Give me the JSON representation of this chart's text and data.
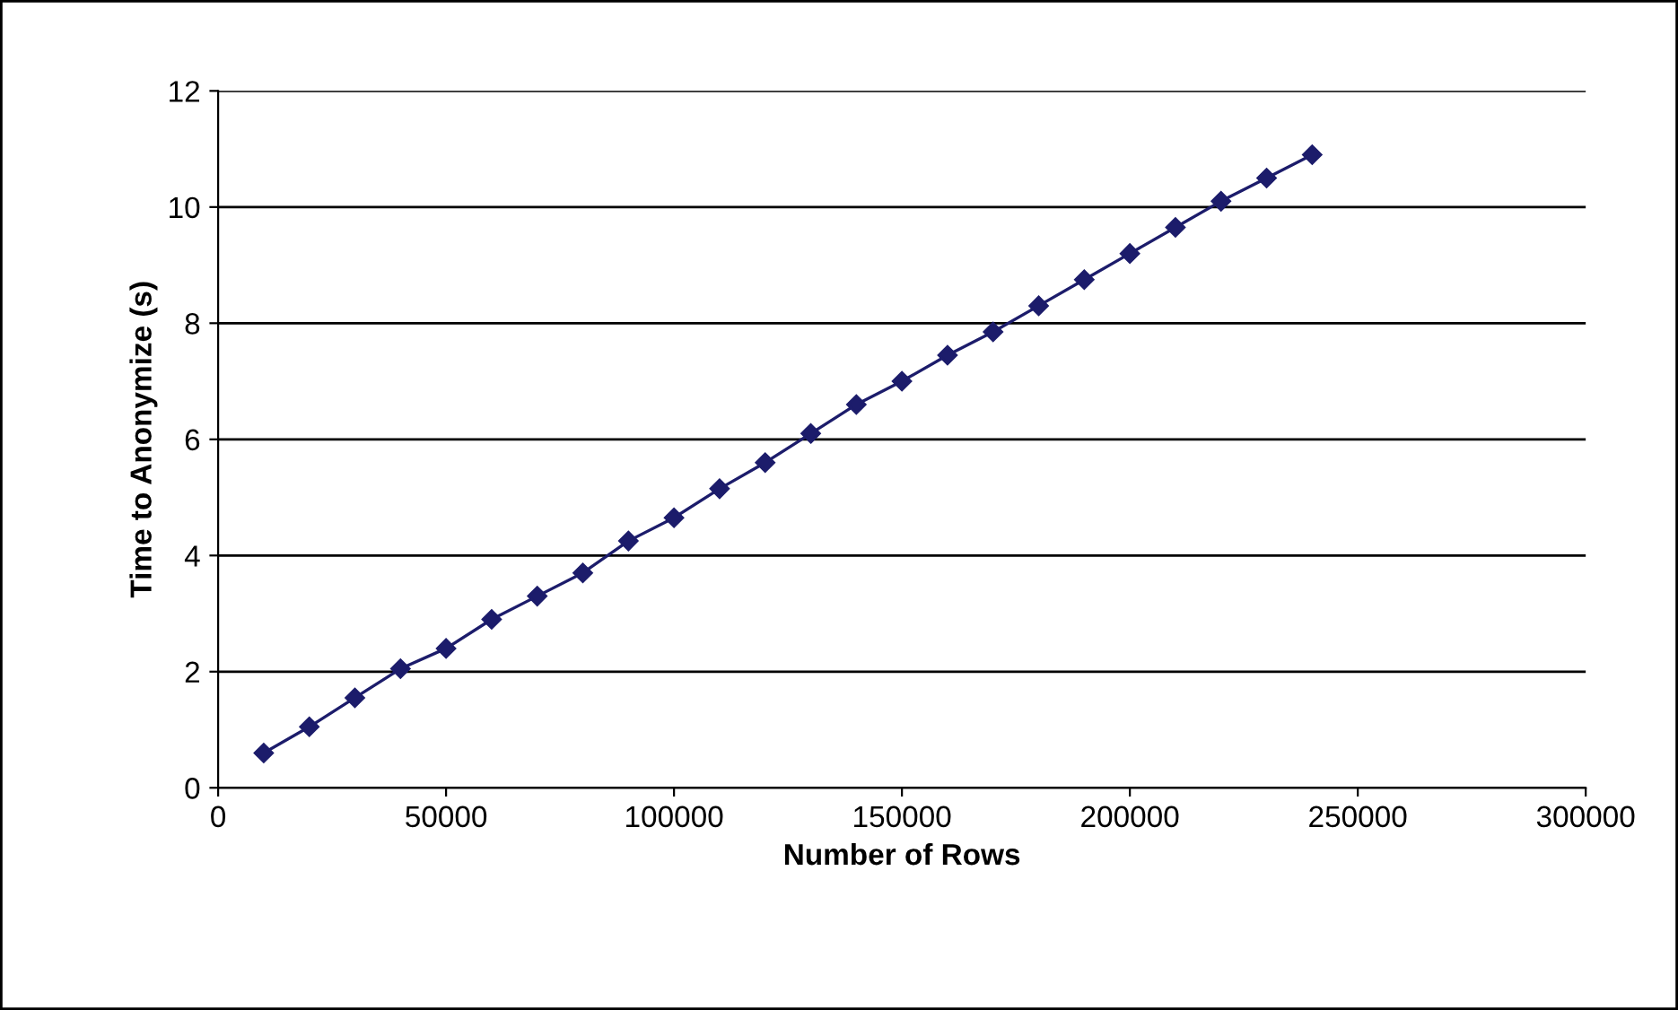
{
  "chart_data": {
    "type": "line",
    "xlabel": "Number of Rows",
    "ylabel": "Time to Anonymize (s)",
    "x": [
      10000,
      20000,
      30000,
      40000,
      50000,
      60000,
      70000,
      80000,
      90000,
      100000,
      110000,
      120000,
      130000,
      140000,
      150000,
      160000,
      170000,
      180000,
      190000,
      200000,
      210000,
      220000,
      230000,
      240000
    ],
    "series": [
      {
        "color": "#1c1c6b",
        "values": [
          0.6,
          1.05,
          1.55,
          2.05,
          2.4,
          2.9,
          3.3,
          3.7,
          4.25,
          4.65,
          5.15,
          5.6,
          6.1,
          6.6,
          7.0,
          7.45,
          7.85,
          8.3,
          8.75,
          9.2,
          9.65,
          10.1,
          10.5,
          10.9
        ]
      }
    ],
    "xlim": [
      0,
      300000
    ],
    "xticks": [
      0,
      50000,
      100000,
      150000,
      200000,
      250000,
      300000
    ],
    "ylim": [
      0,
      12
    ],
    "yticks": [
      0,
      2,
      4,
      6,
      8,
      10,
      12
    ],
    "grid": "y",
    "marker": "diamond",
    "line_style": "solid",
    "legend": false
  }
}
